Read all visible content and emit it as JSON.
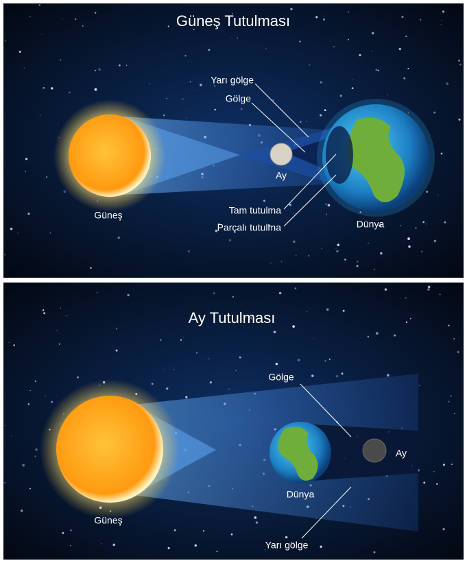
{
  "solar_eclipse": {
    "title": "Güneş Tutulması",
    "labels": {
      "penumbra": "Yarı gölge",
      "umbra": "Gölge",
      "moon": "Ay",
      "sun": "Güneş",
      "total": "Tam tutulma",
      "partial": "Parçalı tutulma",
      "earth": "Dünya"
    }
  },
  "lunar_eclipse": {
    "title": "Ay Tutulması",
    "labels": {
      "umbra": "Gölge",
      "moon": "Ay",
      "earth": "Dünya",
      "sun": "Güneş",
      "penumbra": "Yarı gölge"
    }
  }
}
